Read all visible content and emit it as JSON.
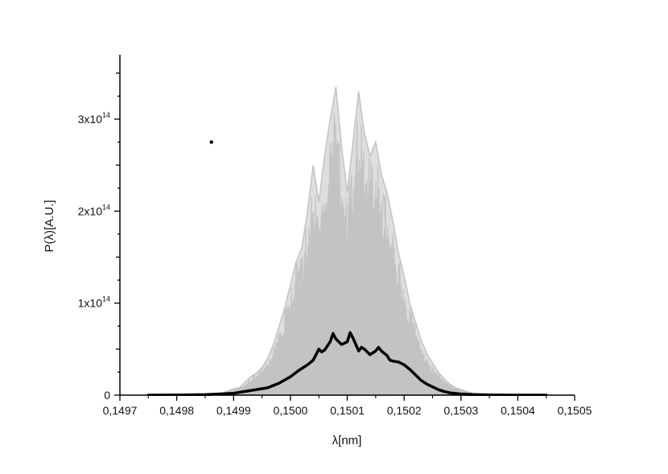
{
  "chart_data": {
    "type": "line",
    "title": "",
    "xlabel": "λ[nm]",
    "ylabel": "P(λ)[A.U.]",
    "xlim": [
      0.1497,
      0.1505
    ],
    "ylim": [
      0,
      370000000000000.0
    ],
    "x_ticks": [
      0.1497,
      0.1498,
      0.1499,
      0.15,
      0.1501,
      0.1502,
      0.1503,
      0.1504,
      0.1505
    ],
    "x_tick_labels": [
      "0,1497",
      "0,1498",
      "0,1499",
      "0,1500",
      "0,1501",
      "0,1502",
      "0,1503",
      "0,1504",
      "0,1505"
    ],
    "y_ticks": [
      0,
      100000000000000.0,
      200000000000000.0,
      300000000000000.0
    ],
    "y_tick_labels": [
      {
        "base": "0",
        "exp": ""
      },
      {
        "base": "1x10",
        "exp": "14"
      },
      {
        "base": "2x10",
        "exp": "14"
      },
      {
        "base": "3x10",
        "exp": "14"
      }
    ],
    "grid": false,
    "legend": "none",
    "colors": {
      "shots": "#c3c3c3",
      "average": "#000000",
      "axis": "#000000"
    },
    "series": [
      {
        "role": "single-shot spectra (envelope of many overlapping shots)",
        "x": [
          0.14985,
          0.14988,
          0.1499,
          0.14991,
          0.14992,
          0.14993,
          0.14994,
          0.14995,
          0.14996,
          0.14997,
          0.14998,
          0.14999,
          0.15,
          0.15001,
          0.15002,
          0.15003,
          0.15004,
          0.15005,
          0.15006,
          0.15007,
          0.15008,
          0.15009,
          0.1501,
          0.15011,
          0.15012,
          0.15013,
          0.15014,
          0.15015,
          0.15016,
          0.15017,
          0.15018,
          0.15019,
          0.1502,
          0.15021,
          0.15022,
          0.15023,
          0.15024,
          0.15025,
          0.15026,
          0.15027,
          0.15028,
          0.15029,
          0.1503,
          0.15031,
          0.15032,
          0.15033,
          0.15035
        ],
        "values": [
          0,
          2000000000000.0,
          7000000000000.0,
          8000000000000.0,
          14000000000000.0,
          20000000000000.0,
          24000000000000.0,
          30000000000000.0,
          40000000000000.0,
          55000000000000.0,
          75000000000000.0,
          95000000000000.0,
          120000000000000.0,
          145000000000000.0,
          160000000000000.0,
          200000000000000.0,
          250000000000000.0,
          210000000000000.0,
          260000000000000.0,
          300000000000000.0,
          335000000000000.0,
          270000000000000.0,
          220000000000000.0,
          275000000000000.0,
          330000000000000.0,
          285000000000000.0,
          260000000000000.0,
          275000000000000.0,
          240000000000000.0,
          220000000000000.0,
          190000000000000.0,
          155000000000000.0,
          130000000000000.0,
          100000000000000.0,
          80000000000000.0,
          60000000000000.0,
          45000000000000.0,
          35000000000000.0,
          25000000000000.0,
          18000000000000.0,
          12000000000000.0,
          8000000000000.0,
          6000000000000.0,
          4000000000000.0,
          2000000000000.0,
          1000000000000.0,
          0
        ]
      },
      {
        "role": "average spectrum",
        "x": [
          0.14975,
          0.1498,
          0.14985,
          0.1499,
          0.14992,
          0.14994,
          0.14996,
          0.14998,
          0.15,
          0.150015,
          0.15003,
          0.15004,
          0.15005,
          0.150055,
          0.15006,
          0.15007,
          0.150075,
          0.15008,
          0.15009,
          0.1501,
          0.150105,
          0.15011,
          0.15012,
          0.150125,
          0.15013,
          0.15014,
          0.15015,
          0.150155,
          0.15016,
          0.15017,
          0.150175,
          0.15018,
          0.15019,
          0.1502,
          0.15021,
          0.15022,
          0.15023,
          0.15024,
          0.15025,
          0.15026,
          0.15027,
          0.15028,
          0.1503,
          0.15032,
          0.15035,
          0.1504,
          0.15045
        ],
        "values": [
          0,
          100000000000.0,
          500000000000.0,
          2000000000000.0,
          4000000000000.0,
          6000000000000.0,
          8000000000000.0,
          13000000000000.0,
          20000000000000.0,
          27000000000000.0,
          33000000000000.0,
          38000000000000.0,
          50000000000000.0,
          47000000000000.0,
          49000000000000.0,
          58000000000000.0,
          67000000000000.0,
          61000000000000.0,
          55000000000000.0,
          58000000000000.0,
          68000000000000.0,
          62000000000000.0,
          48000000000000.0,
          52000000000000.0,
          50000000000000.0,
          44000000000000.0,
          48000000000000.0,
          52000000000000.0,
          48000000000000.0,
          43000000000000.0,
          38000000000000.0,
          37000000000000.0,
          36000000000000.0,
          33000000000000.0,
          28000000000000.0,
          22000000000000.0,
          16000000000000.0,
          12000000000000.0,
          9000000000000.0,
          6000000000000.0,
          4000000000000.0,
          2500000000000.0,
          1200000000000.0,
          600000000000.0,
          200000000000.0,
          30000000000.0,
          0
        ]
      }
    ],
    "stray_point": {
      "x": 0.149861,
      "y": 275000000000000.0
    }
  }
}
